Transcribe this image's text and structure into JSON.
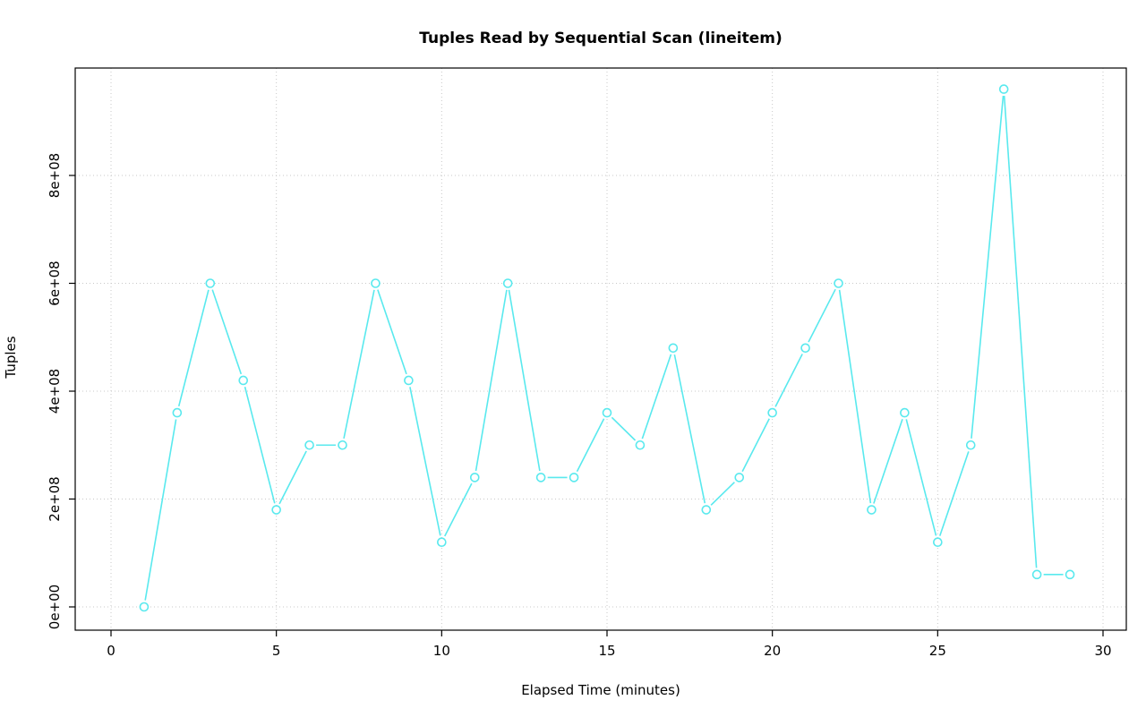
{
  "chart_data": {
    "type": "line",
    "title": "Tuples Read by Sequential Scan (lineitem)",
    "xlabel": "Elapsed Time (minutes)",
    "ylabel": "Tuples",
    "x": [
      1,
      2,
      3,
      4,
      5,
      6,
      7,
      8,
      9,
      10,
      11,
      12,
      13,
      14,
      15,
      16,
      17,
      18,
      19,
      20,
      21,
      22,
      23,
      24,
      25,
      26,
      27,
      28,
      29
    ],
    "y": [
      0,
      360000000,
      600000000,
      420000000,
      180000000,
      300000000,
      300000000,
      600000000,
      420000000,
      120000000,
      240000000,
      600000000,
      240000000,
      240000000,
      360000000,
      300000000,
      480000000,
      180000000,
      240000000,
      360000000,
      480000000,
      600000000,
      180000000,
      360000000,
      120000000,
      300000000,
      960000000,
      60000000,
      60000000
    ],
    "xlim": [
      0,
      30
    ],
    "ylim": [
      0,
      980000000
    ],
    "xticks": [
      0,
      5,
      10,
      15,
      20,
      25,
      30
    ],
    "xtick_labels": [
      "0",
      "5",
      "10",
      "15",
      "20",
      "25",
      "30"
    ],
    "yticks": [
      0,
      200000000,
      400000000,
      600000000,
      800000000
    ],
    "ytick_labels": [
      "0e+00",
      "2e+08",
      "4e+08",
      "6e+08",
      "8e+08"
    ],
    "grid": "dotted",
    "legend": "none",
    "marker": "open-circle",
    "line_style": "both-with-gaps",
    "colors": {
      "line": "#59e9ee",
      "marker_fill": "#ffffff",
      "grid": "#c8c8c8",
      "axis": "#000000"
    }
  }
}
